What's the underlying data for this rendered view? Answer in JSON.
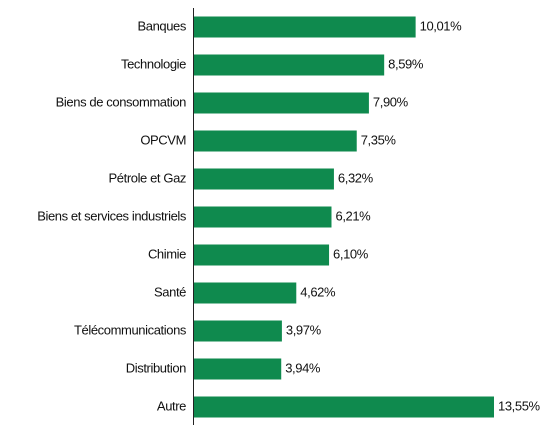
{
  "chart_data": {
    "type": "barh",
    "categories": [
      "Banques",
      "Technologie",
      "Biens de consommation",
      "OPCVM",
      "Pétrole et Gaz",
      "Biens et services industriels",
      "Chimie",
      "Santé",
      "Télécommunications",
      "Distribution",
      "Autre"
    ],
    "values": [
      10.01,
      8.59,
      7.9,
      7.35,
      6.32,
      6.21,
      6.1,
      4.62,
      3.97,
      3.94,
      13.55
    ],
    "value_labels": [
      "10,01%",
      "8,59%",
      "7,90%",
      "7,35%",
      "6,32%",
      "6,21%",
      "6,10%",
      "4,62%",
      "3,97%",
      "3,94%",
      "13,55%"
    ],
    "color": "#0f8a4e"
  }
}
